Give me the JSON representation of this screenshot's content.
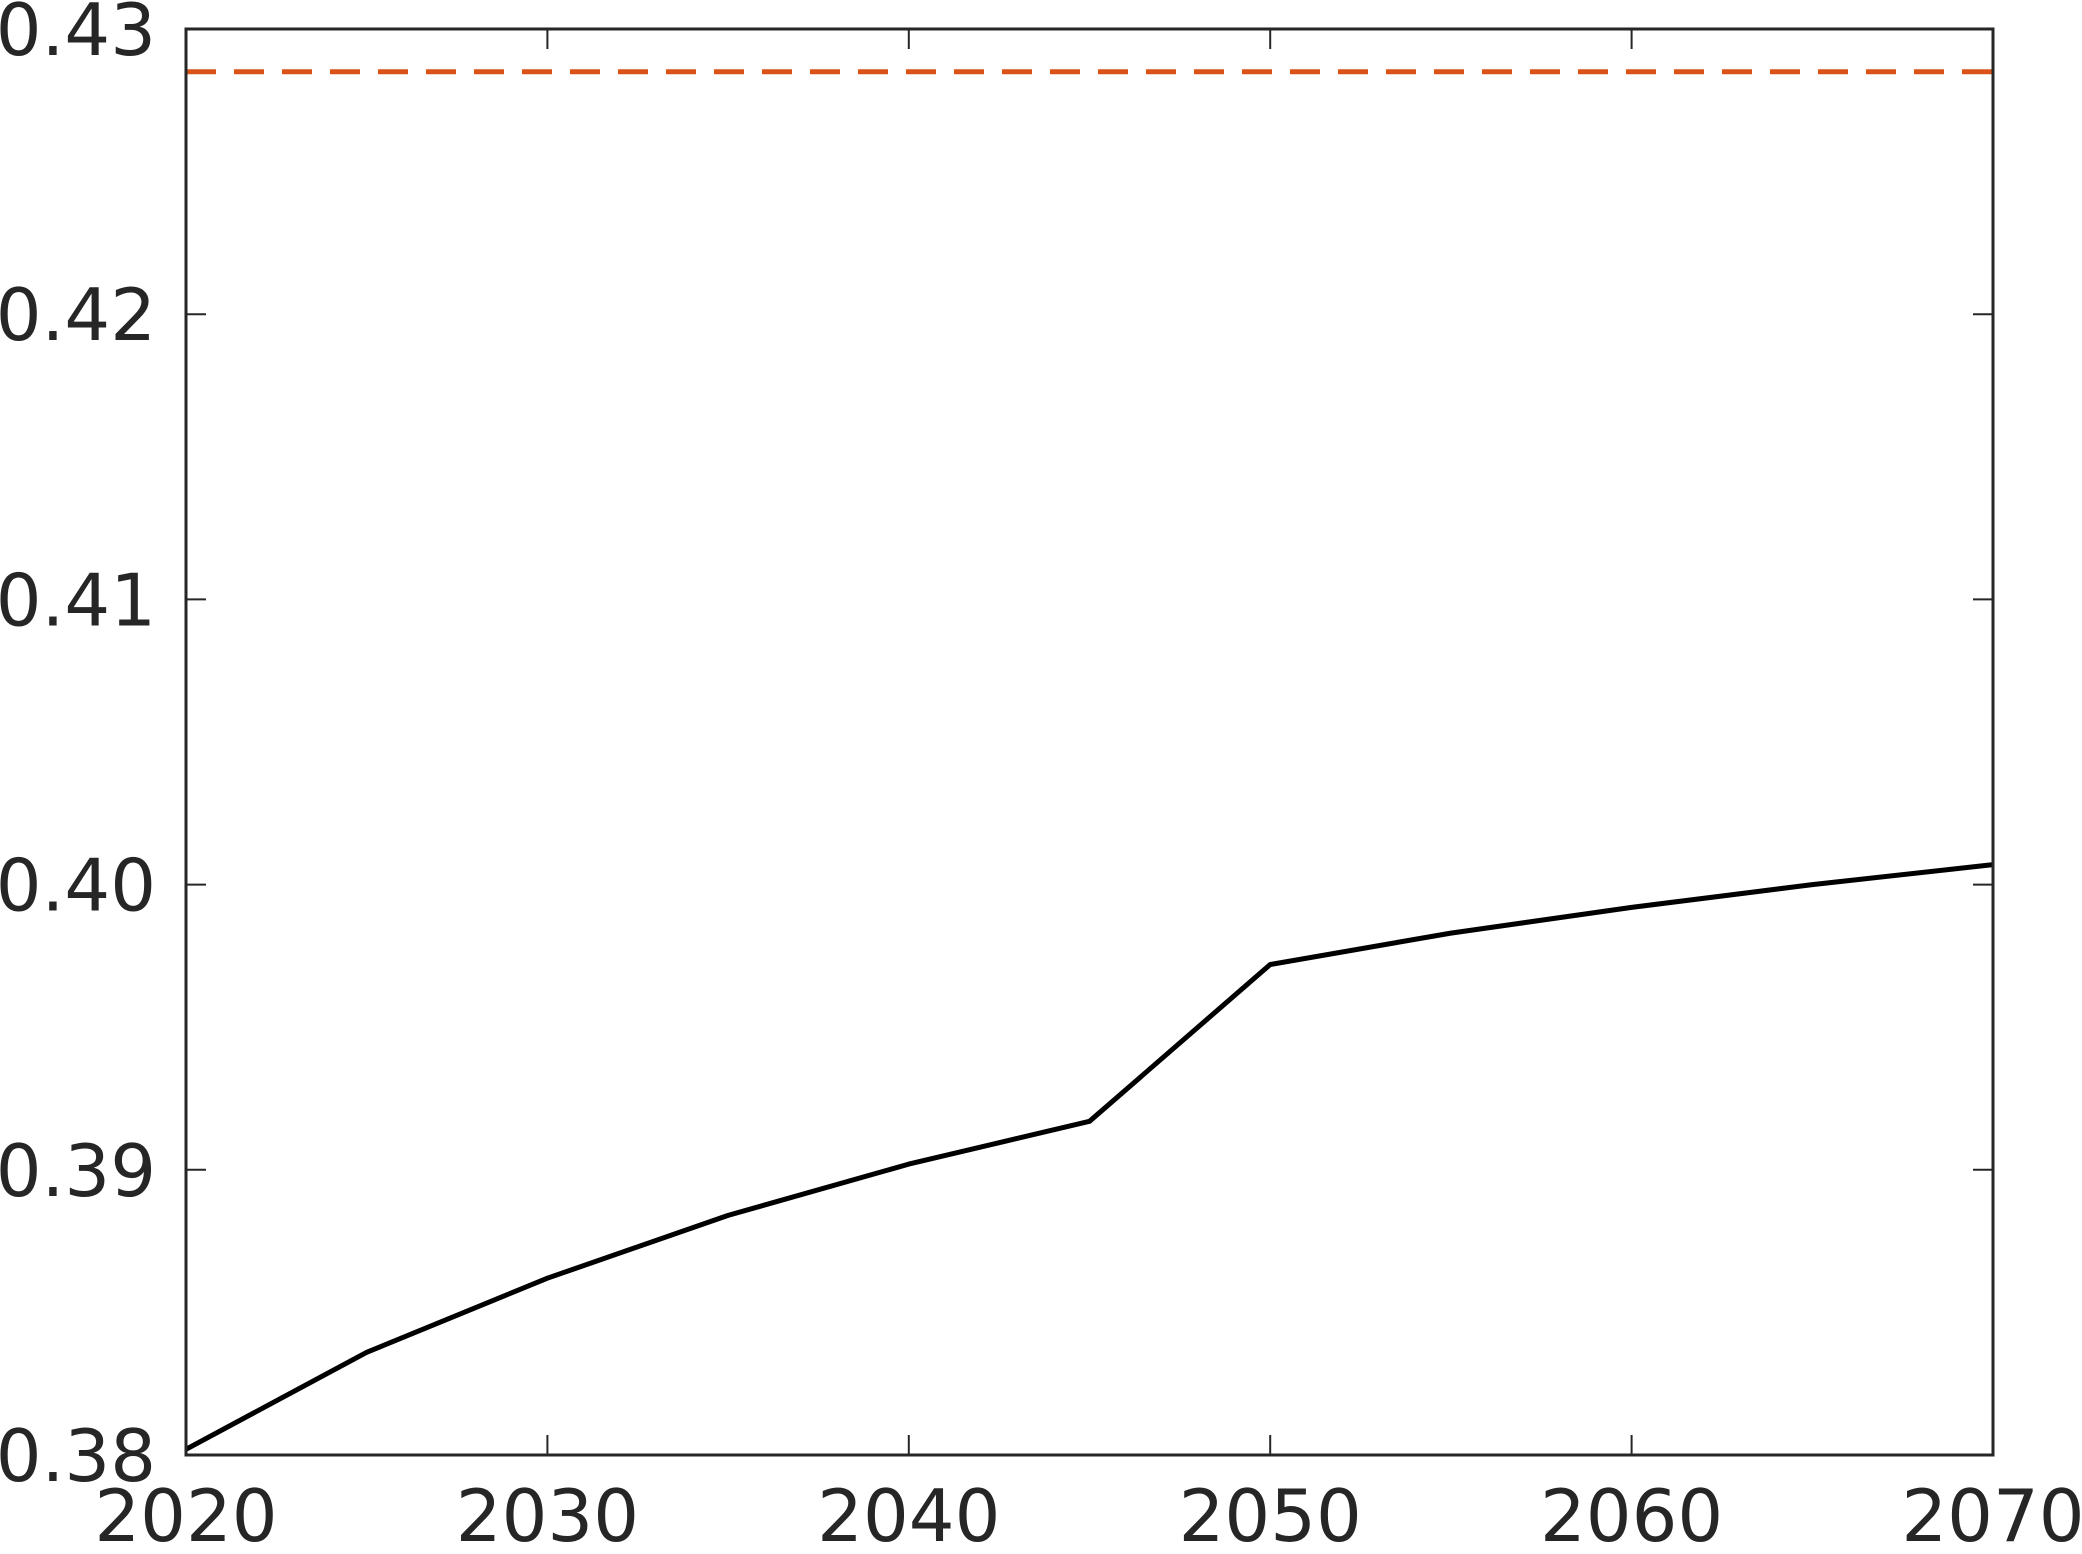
{
  "chart_data": {
    "type": "line",
    "title": "",
    "xlabel": "",
    "ylabel": "",
    "xlim": [
      2020,
      2070
    ],
    "ylim": [
      0.38,
      0.43
    ],
    "x_ticks": [
      2020,
      2030,
      2040,
      2050,
      2060,
      2070
    ],
    "x_tick_labels": [
      "2020",
      "2030",
      "2040",
      "2050",
      "2060",
      "2070"
    ],
    "y_ticks": [
      0.38,
      0.39,
      0.4,
      0.41,
      0.42,
      0.43
    ],
    "y_tick_labels": [
      "0.38",
      "0.39",
      "0.40",
      "0.41",
      "0.42",
      "0.43"
    ],
    "grid": false,
    "legend": "none",
    "series": [
      {
        "color": "#000000",
        "style": "solid",
        "x": [
          2020,
          2025,
          2030,
          2035,
          2040,
          2045,
          2050,
          2055,
          2060,
          2065,
          2070
        ],
        "y": [
          0.3802,
          0.3836,
          0.3862,
          0.3884,
          0.3902,
          0.3917,
          0.3972,
          0.3983,
          0.3992,
          0.4,
          0.4007
        ]
      },
      {
        "color": "#D95319",
        "style": "dashed",
        "x": [
          2020,
          2070
        ],
        "y": [
          0.4285,
          0.4285
        ]
      }
    ]
  }
}
